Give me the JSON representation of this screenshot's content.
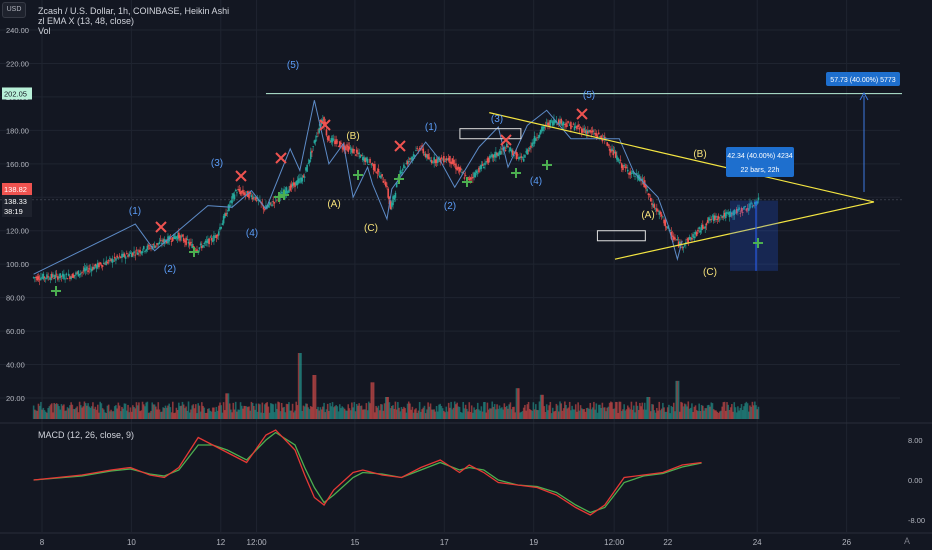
{
  "header": {
    "currency_button": "USD",
    "title": "Zcash / U.S. Dollar, 1h, COINBASE, Heikin Ashi",
    "indicator_1": "zl EMA X (13, 48, close)",
    "indicator_2": "Vol"
  },
  "macd_panel": {
    "label": "MACD (12, 26, close, 9)",
    "right_ticks": [
      "8.00",
      "0.00",
      "-8.00"
    ]
  },
  "bottom_buttons": {
    "auto_label": "A"
  },
  "colors": {
    "background": "#131722",
    "up": "#26a69a",
    "down": "#ef5350",
    "wave_line": "#5d8bc7",
    "wave_label_blue": "#5b9cf6",
    "wave_label_yellow": "#f5e17a",
    "trendline": "#f5e642",
    "target_line": "#b8f0d8",
    "measure_box": "#1e6fce",
    "macd_line": "#4caf50",
    "signal_line": "#e53935"
  },
  "chart_data": {
    "type": "candlestick",
    "title": "Zcash / U.S. Dollar, 1h, COINBASE, Heikin Ashi",
    "xlabel": "",
    "ylabel": "",
    "x_ticks": [
      "8",
      "10",
      "12",
      "12:00",
      "15",
      "17",
      "19",
      "12:00",
      "22",
      "24",
      "26"
    ],
    "y_ticks": [
      "240.00",
      "220.00",
      "200.00",
      "180.00",
      "160.00",
      "140.00",
      "120.00",
      "100.00",
      "80.00",
      "60.00",
      "40.00",
      "20.00"
    ],
    "ylim": [
      0,
      243
    ],
    "price_labels": {
      "target_level": "202.05",
      "last_price": "138.82",
      "current": "138.33",
      "countdown": "38:19"
    },
    "price_path": [
      [
        0,
        92
      ],
      [
        8,
        93
      ],
      [
        16,
        102
      ],
      [
        24,
        110
      ],
      [
        30,
        117
      ],
      [
        34,
        109
      ],
      [
        38,
        117
      ],
      [
        42,
        144
      ],
      [
        46,
        140
      ],
      [
        48,
        133
      ],
      [
        52,
        143
      ],
      [
        56,
        152
      ],
      [
        59,
        180
      ],
      [
        60,
        188
      ],
      [
        61,
        175
      ],
      [
        66,
        168
      ],
      [
        70,
        160
      ],
      [
        73,
        148
      ],
      [
        74,
        133
      ],
      [
        76,
        156
      ],
      [
        80,
        170
      ],
      [
        82,
        162
      ],
      [
        86,
        163
      ],
      [
        90,
        150
      ],
      [
        94,
        162
      ],
      [
        98,
        170
      ],
      [
        101,
        162
      ],
      [
        104,
        176
      ],
      [
        106,
        183
      ],
      [
        108,
        186
      ],
      [
        112,
        182
      ],
      [
        116,
        178
      ],
      [
        118,
        175
      ],
      [
        122,
        158
      ],
      [
        126,
        150
      ],
      [
        128,
        136
      ],
      [
        130,
        128
      ],
      [
        132,
        117
      ],
      [
        134,
        111
      ],
      [
        137,
        118
      ],
      [
        140,
        127
      ],
      [
        144,
        130
      ],
      [
        148,
        134
      ],
      [
        150,
        138
      ]
    ],
    "x_range": [
      0,
      167
    ],
    "volume": {
      "ylim": [
        0,
        15000
      ],
      "spikes": [
        [
          40,
          3500
        ],
        [
          55,
          9000
        ],
        [
          58,
          6000
        ],
        [
          70,
          5000
        ],
        [
          73,
          3000
        ],
        [
          100,
          4200
        ],
        [
          105,
          3300
        ],
        [
          127,
          3000
        ],
        [
          133,
          5200
        ]
      ]
    },
    "wave_polyline": [
      [
        0,
        94
      ],
      [
        21,
        124
      ],
      [
        25,
        108
      ],
      [
        36,
        135
      ],
      [
        41,
        134
      ],
      [
        45,
        144
      ],
      [
        48,
        133
      ],
      [
        53,
        169
      ],
      [
        55,
        156
      ],
      [
        58,
        198
      ],
      [
        61,
        160
      ],
      [
        64,
        172
      ],
      [
        66,
        140
      ],
      [
        69,
        158
      ],
      [
        70,
        148
      ],
      [
        73,
        127
      ],
      [
        74,
        145
      ],
      [
        81,
        173
      ],
      [
        84,
        162
      ],
      [
        87,
        146
      ],
      [
        92,
        170
      ],
      [
        96,
        182
      ],
      [
        98,
        158
      ],
      [
        102,
        183
      ],
      [
        106,
        192
      ],
      [
        111,
        175
      ],
      [
        121,
        175
      ],
      [
        124,
        155
      ],
      [
        129,
        140
      ],
      [
        131,
        124
      ],
      [
        133,
        103
      ],
      [
        134,
        114
      ]
    ],
    "elliott_labels": [
      {
        "text": "(1)",
        "x": 18,
        "y": 133,
        "color": "blue"
      },
      {
        "text": "(2)",
        "x": 25,
        "y": 98,
        "color": "blue"
      },
      {
        "text": "(3)",
        "x": 33,
        "y": 161,
        "color": "blue"
      },
      {
        "text": "(4)",
        "x": 40,
        "y": 120,
        "color": "blue"
      },
      {
        "text": "(5)",
        "x": 47,
        "y": 222,
        "color": "blue"
      },
      {
        "text": "(B)",
        "x": 57,
        "y": 178,
        "color": "yellow"
      },
      {
        "text": "(A)",
        "x": 53,
        "y": 135,
        "color": "yellow"
      },
      {
        "text": "(C)",
        "x": 61,
        "y": 119,
        "color": "yellow"
      },
      {
        "text": "(1)",
        "x": 71,
        "y": 182,
        "color": "blue"
      },
      {
        "text": "(2)",
        "x": 72,
        "y": 135,
        "color": "blue"
      },
      {
        "text": "(3)",
        "x": 80,
        "y": 187,
        "color": "blue"
      },
      {
        "text": "(4)",
        "x": 86,
        "y": 140,
        "color": "blue"
      },
      {
        "text": "(5)",
        "x": 95,
        "y": 202,
        "color": "blue"
      },
      {
        "text": "(B)",
        "x": 113,
        "y": 165,
        "color": "yellow"
      },
      {
        "text": "(A)",
        "x": 104,
        "y": 131,
        "color": "yellow"
      },
      {
        "text": "(C)",
        "x": 114,
        "y": 98,
        "color": "yellow"
      }
    ],
    "sell_marks": [
      [
        26,
        123
      ],
      [
        39,
        147
      ],
      [
        45,
        158
      ],
      [
        52,
        185
      ],
      [
        64,
        172
      ],
      [
        82,
        171
      ],
      [
        95,
        190
      ]
    ],
    "buy_marks": [
      [
        4,
        84
      ],
      [
        30,
        109
      ],
      [
        45,
        141
      ],
      [
        46,
        142
      ],
      [
        58,
        152
      ],
      [
        64,
        152
      ],
      [
        75,
        146
      ],
      [
        84,
        154
      ],
      [
        89,
        159
      ],
      [
        123,
        113
      ]
    ],
    "trendlines": {
      "upper": [
        [
          90,
          190
        ],
        [
          142,
          142
        ]
      ],
      "lower": [
        [
          117,
          103
        ],
        [
          142,
          142
        ]
      ],
      "target_level": [
        [
          48,
          202
        ],
        [
          150,
          202
        ]
      ]
    },
    "boxes": [
      {
        "x0": 86,
        "x1": 100,
        "y0": 175,
        "y1": 181
      },
      {
        "x0": 114,
        "x1": 125,
        "y0": 114,
        "y1": 120
      }
    ],
    "measure_labels": [
      {
        "lines": [
          "42.34 (40.00%) 4234",
          "22 bars, 22h"
        ]
      },
      {
        "lines": [
          "57.73 (40.00%) 5773"
        ]
      }
    ],
    "macd": {
      "ylim": [
        -12,
        12
      ],
      "macd_line": [
        [
          0,
          0
        ],
        [
          10,
          1
        ],
        [
          16,
          2
        ],
        [
          20,
          2.5
        ],
        [
          24,
          1
        ],
        [
          27,
          0.5
        ],
        [
          30,
          2.5
        ],
        [
          34,
          8.5
        ],
        [
          37,
          7
        ],
        [
          40,
          5.5
        ],
        [
          44,
          3.5
        ],
        [
          48,
          9
        ],
        [
          50,
          10
        ],
        [
          54,
          6
        ],
        [
          56,
          1
        ],
        [
          58,
          -3.5
        ],
        [
          60,
          -5
        ],
        [
          62,
          -2
        ],
        [
          66,
          1.5
        ],
        [
          68,
          2
        ],
        [
          72,
          1
        ],
        [
          76,
          0.5
        ],
        [
          80,
          2.5
        ],
        [
          84,
          4
        ],
        [
          88,
          1.5
        ],
        [
          90,
          3
        ],
        [
          93,
          1.5
        ],
        [
          96,
          -0.5
        ],
        [
          100,
          -1
        ],
        [
          104,
          -1.5
        ],
        [
          108,
          -3
        ],
        [
          112,
          -5.5
        ],
        [
          115,
          -7
        ],
        [
          118,
          -5
        ],
        [
          122,
          0.5
        ],
        [
          126,
          1
        ],
        [
          130,
          1.5
        ],
        [
          134,
          3
        ],
        [
          138,
          3.5
        ]
      ],
      "signal_line": [
        [
          0,
          0
        ],
        [
          10,
          0.8
        ],
        [
          16,
          1.8
        ],
        [
          20,
          2.2
        ],
        [
          24,
          1.2
        ],
        [
          27,
          0.8
        ],
        [
          30,
          2
        ],
        [
          34,
          7
        ],
        [
          37,
          7
        ],
        [
          40,
          6
        ],
        [
          44,
          4
        ],
        [
          48,
          8
        ],
        [
          50,
          9.5
        ],
        [
          54,
          7
        ],
        [
          56,
          2.5
        ],
        [
          58,
          -1.5
        ],
        [
          60,
          -4.5
        ],
        [
          62,
          -3
        ],
        [
          66,
          0.5
        ],
        [
          68,
          1.5
        ],
        [
          72,
          1.2
        ],
        [
          76,
          0.5
        ],
        [
          80,
          2
        ],
        [
          84,
          3.5
        ],
        [
          88,
          2
        ],
        [
          90,
          2.5
        ],
        [
          93,
          2
        ],
        [
          96,
          0
        ],
        [
          100,
          -1
        ],
        [
          104,
          -1.3
        ],
        [
          108,
          -2.5
        ],
        [
          112,
          -5
        ],
        [
          115,
          -6.5
        ],
        [
          118,
          -5.5
        ],
        [
          122,
          -0.5
        ],
        [
          126,
          0.8
        ],
        [
          130,
          1.3
        ],
        [
          134,
          2.6
        ],
        [
          138,
          3.4
        ]
      ]
    }
  }
}
